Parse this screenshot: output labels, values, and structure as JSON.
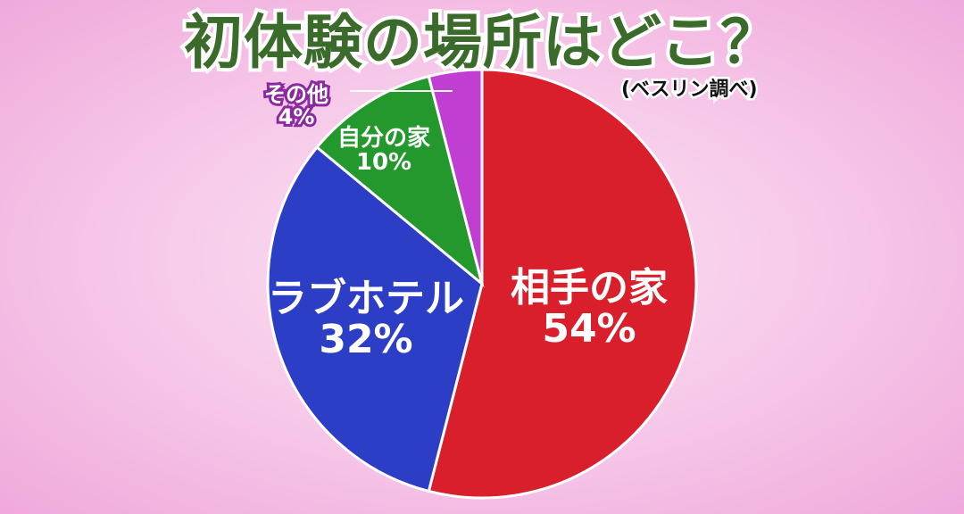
{
  "chart_data": {
    "type": "pie",
    "title": "初体験の場所はどこ？",
    "subtitle": "(ベスリン調べ)",
    "start": "top",
    "direction": "clockwise",
    "slices": [
      {
        "label": "相手の家",
        "value": 54,
        "display": "54%",
        "color": "#d81f2b"
      },
      {
        "label": "ラブホテル",
        "value": 32,
        "display": "32%",
        "color": "#2c3ec6"
      },
      {
        "label": "自分の家",
        "value": 10,
        "display": "10%",
        "color": "#23982c"
      },
      {
        "label": "その他",
        "value": 4,
        "display": "4%",
        "color": "#c03ed2"
      }
    ]
  }
}
